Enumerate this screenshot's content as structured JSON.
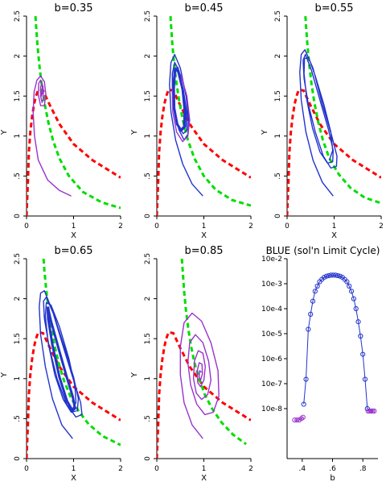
{
  "chart_data": [
    {
      "type": "line",
      "title": "b=0.35",
      "xlabel": "X",
      "ylabel": "Y",
      "xlim": [
        0,
        2
      ],
      "ylim": [
        0,
        2.5
      ],
      "xticks": [
        "0",
        "1",
        "2"
      ],
      "yticks": [
        "0",
        ".5",
        "1",
        "1.5",
        "2",
        "2.5"
      ],
      "series": [
        {
          "kind": "nullcline",
          "color": "#ff0000",
          "x": [
            0.0,
            0.03,
            0.05,
            0.08,
            0.12,
            0.16,
            0.2,
            0.25,
            0.35,
            0.5,
            0.7,
            1.0,
            1.4,
            2.0
          ],
          "y": [
            0.0,
            0.45,
            0.8,
            1.05,
            1.25,
            1.4,
            1.5,
            1.58,
            1.57,
            1.38,
            1.15,
            0.9,
            0.7,
            0.48
          ]
        },
        {
          "kind": "nullcline",
          "color": "#00dd00",
          "x": [
            0.18,
            0.2,
            0.23,
            0.27,
            0.32,
            0.38,
            0.46,
            0.56,
            0.7,
            0.9,
            1.2,
            1.6,
            2.0
          ],
          "y": [
            2.6,
            2.4,
            2.15,
            1.9,
            1.65,
            1.42,
            1.18,
            0.95,
            0.72,
            0.5,
            0.3,
            0.17,
            0.1
          ]
        },
        {
          "kind": "trajectory",
          "color": "#9933cc",
          "x": [
            0.95,
            0.7,
            0.45,
            0.25,
            0.17,
            0.14,
            0.16,
            0.22,
            0.3,
            0.38,
            0.41,
            0.38,
            0.3,
            0.25,
            0.26,
            0.3,
            0.35,
            0.36,
            0.33,
            0.3,
            0.3,
            0.33,
            0.34,
            0.32,
            0.31
          ],
          "y": [
            0.25,
            0.32,
            0.45,
            0.7,
            1.0,
            1.3,
            1.55,
            1.7,
            1.75,
            1.68,
            1.52,
            1.38,
            1.38,
            1.52,
            1.66,
            1.7,
            1.62,
            1.48,
            1.42,
            1.5,
            1.62,
            1.64,
            1.56,
            1.5,
            1.56
          ]
        }
      ]
    },
    {
      "type": "line",
      "title": "b=0.45",
      "xlabel": "X",
      "ylabel": "Y",
      "xlim": [
        0,
        2
      ],
      "ylim": [
        0,
        2.5
      ],
      "xticks": [
        "0",
        "1",
        "2"
      ],
      "yticks": [
        "0",
        ".5",
        "1",
        "1.5",
        "2",
        "2.5"
      ],
      "series": [
        {
          "kind": "nullcline",
          "color": "#ff0000",
          "x": [
            0.0,
            0.03,
            0.05,
            0.08,
            0.12,
            0.16,
            0.2,
            0.25,
            0.35,
            0.5,
            0.7,
            1.0,
            1.4,
            2.0
          ],
          "y": [
            0.0,
            0.45,
            0.8,
            1.05,
            1.25,
            1.4,
            1.5,
            1.58,
            1.57,
            1.38,
            1.15,
            0.9,
            0.7,
            0.48
          ]
        },
        {
          "kind": "nullcline",
          "color": "#00dd00",
          "x": [
            0.28,
            0.3,
            0.33,
            0.37,
            0.42,
            0.48,
            0.56,
            0.66,
            0.8,
            1.0,
            1.25,
            1.6,
            2.0
          ],
          "y": [
            2.6,
            2.4,
            2.15,
            1.9,
            1.65,
            1.42,
            1.18,
            0.95,
            0.72,
            0.5,
            0.33,
            0.2,
            0.13
          ]
        },
        {
          "kind": "trajectory",
          "color": "#2233cc",
          "x": [
            0.98,
            0.75,
            0.55,
            0.4,
            0.3,
            0.27,
            0.3,
            0.38,
            0.5,
            0.62,
            0.68,
            0.66,
            0.58,
            0.47,
            0.38,
            0.33,
            0.33,
            0.38,
            0.47,
            0.57,
            0.65,
            0.64,
            0.56,
            0.46,
            0.37,
            0.34,
            0.37,
            0.45,
            0.53,
            0.58,
            0.57,
            0.5
          ],
          "y": [
            0.25,
            0.4,
            0.65,
            0.95,
            1.3,
            1.65,
            1.92,
            2.02,
            1.85,
            1.5,
            1.2,
            1.02,
            0.95,
            1.08,
            1.3,
            1.55,
            1.78,
            1.92,
            1.82,
            1.55,
            1.25,
            1.07,
            1.03,
            1.12,
            1.35,
            1.6,
            1.82,
            1.86,
            1.62,
            1.32,
            1.12,
            1.08
          ]
        },
        {
          "kind": "trajectory",
          "color": "#9933cc",
          "x": [
            0.38,
            0.33,
            0.34,
            0.42,
            0.55,
            0.66,
            0.7,
            0.64,
            0.52,
            0.42
          ],
          "y": [
            1.78,
            1.55,
            1.3,
            1.05,
            0.93,
            1.0,
            1.2,
            1.5,
            1.75,
            1.85
          ]
        },
        {
          "kind": "trajectory",
          "color": "#2233cc",
          "width": 3,
          "x": [
            0.39,
            0.36,
            0.37,
            0.43,
            0.52,
            0.6,
            0.61,
            0.55,
            0.46,
            0.39
          ],
          "y": [
            1.85,
            1.6,
            1.35,
            1.15,
            1.07,
            1.12,
            1.32,
            1.58,
            1.8,
            1.85
          ]
        }
      ]
    },
    {
      "type": "line",
      "title": "b=0.55",
      "xlabel": "X",
      "ylabel": "Y",
      "xlim": [
        0,
        2
      ],
      "ylim": [
        0,
        2.5
      ],
      "xticks": [
        "0",
        "1",
        "2"
      ],
      "yticks": [
        "0",
        ".5",
        "1",
        "1.5",
        "2",
        "2.5"
      ],
      "series": [
        {
          "kind": "nullcline",
          "color": "#ff0000",
          "x": [
            0.0,
            0.03,
            0.05,
            0.08,
            0.12,
            0.16,
            0.2,
            0.25,
            0.35,
            0.5,
            0.7,
            1.0,
            1.4,
            2.0
          ],
          "y": [
            0.0,
            0.45,
            0.8,
            1.05,
            1.25,
            1.4,
            1.5,
            1.58,
            1.57,
            1.38,
            1.15,
            0.9,
            0.7,
            0.48
          ]
        },
        {
          "kind": "nullcline",
          "color": "#00dd00",
          "x": [
            0.38,
            0.4,
            0.43,
            0.47,
            0.52,
            0.58,
            0.66,
            0.76,
            0.9,
            1.1,
            1.35,
            1.65,
            2.0
          ],
          "y": [
            2.6,
            2.4,
            2.15,
            1.9,
            1.65,
            1.42,
            1.18,
            0.95,
            0.72,
            0.52,
            0.35,
            0.23,
            0.16
          ]
        },
        {
          "kind": "trajectory",
          "color": "#2233cc",
          "x": [
            0.98,
            0.75,
            0.55,
            0.4,
            0.3,
            0.27,
            0.3,
            0.38,
            0.55,
            0.75,
            0.95,
            1.06,
            1.05,
            0.93,
            0.77,
            0.6,
            0.45,
            0.36,
            0.34,
            0.39,
            0.52,
            0.7,
            0.88,
            0.98,
            0.97,
            0.86,
            0.7,
            0.54,
            0.42,
            0.36,
            0.37,
            0.46,
            0.6,
            0.78,
            0.93,
            0.97,
            0.9
          ],
          "y": [
            0.25,
            0.42,
            0.7,
            1.05,
            1.45,
            1.8,
            2.02,
            2.08,
            1.85,
            1.4,
            1.0,
            0.75,
            0.62,
            0.6,
            0.75,
            1.05,
            1.4,
            1.72,
            1.95,
            2.02,
            1.82,
            1.45,
            1.08,
            0.82,
            0.68,
            0.66,
            0.8,
            1.1,
            1.45,
            1.78,
            1.97,
            1.98,
            1.75,
            1.4,
            1.05,
            0.82,
            0.7
          ]
        }
      ]
    },
    {
      "type": "line",
      "title": "b=0.65",
      "xlabel": "X",
      "ylabel": "Y",
      "xlim": [
        0,
        2
      ],
      "ylim": [
        0,
        2.5
      ],
      "xticks": [
        "0",
        "1",
        "2"
      ],
      "yticks": [
        "0",
        ".5",
        "1",
        "1.5",
        "2",
        "2.5"
      ],
      "series": [
        {
          "kind": "nullcline",
          "color": "#ff0000",
          "x": [
            0.0,
            0.03,
            0.05,
            0.08,
            0.12,
            0.16,
            0.2,
            0.25,
            0.35,
            0.5,
            0.7,
            1.0,
            1.4,
            2.0
          ],
          "y": [
            0.0,
            0.45,
            0.8,
            1.05,
            1.25,
            1.4,
            1.5,
            1.58,
            1.57,
            1.38,
            1.15,
            0.9,
            0.7,
            0.48
          ]
        },
        {
          "kind": "nullcline",
          "color": "#00dd00",
          "x": [
            0.35,
            0.38,
            0.42,
            0.47,
            0.53,
            0.6,
            0.69,
            0.8,
            0.93,
            1.1,
            1.32,
            1.62,
            2.0
          ],
          "y": [
            2.6,
            2.35,
            2.1,
            1.85,
            1.62,
            1.4,
            1.18,
            0.97,
            0.78,
            0.6,
            0.43,
            0.28,
            0.17
          ]
        },
        {
          "kind": "trajectory",
          "color": "#2233cc",
          "x": [
            0.98,
            0.75,
            0.55,
            0.4,
            0.3,
            0.27,
            0.3,
            0.38,
            0.55,
            0.78,
            1.0,
            1.15,
            1.18,
            1.05,
            0.85,
            0.65,
            0.48,
            0.38,
            0.36,
            0.42,
            0.58,
            0.8,
            1.0,
            1.1,
            1.08,
            0.95,
            0.78,
            0.6,
            0.46,
            0.4,
            0.42,
            0.52,
            0.7,
            0.9,
            1.03,
            1.05,
            0.98
          ],
          "y": [
            0.25,
            0.42,
            0.75,
            1.15,
            1.55,
            1.9,
            2.07,
            2.1,
            1.85,
            1.4,
            0.98,
            0.7,
            0.55,
            0.52,
            0.68,
            1.0,
            1.4,
            1.75,
            1.97,
            2.02,
            1.8,
            1.4,
            1.02,
            0.75,
            0.6,
            0.58,
            0.74,
            1.05,
            1.45,
            1.78,
            1.95,
            1.92,
            1.65,
            1.25,
            0.9,
            0.7,
            0.62
          ]
        },
        {
          "kind": "trajectory",
          "color": "#2233cc",
          "width": 3,
          "x": [
            0.45,
            0.52,
            0.68,
            0.85,
            0.98,
            1.03,
            0.98,
            0.86,
            0.7,
            0.55,
            0.46,
            0.45
          ],
          "y": [
            1.9,
            1.72,
            1.38,
            1.03,
            0.78,
            0.63,
            0.6,
            0.72,
            1.02,
            1.42,
            1.75,
            1.9
          ]
        }
      ]
    },
    {
      "type": "line",
      "title": "b=0.85",
      "xlabel": "X",
      "ylabel": "Y",
      "xlim": [
        0,
        2
      ],
      "ylim": [
        0,
        2.5
      ],
      "xticks": [
        "0",
        "1",
        "2"
      ],
      "yticks": [
        "0",
        ".5",
        "1",
        "1.5",
        "2",
        "2.5"
      ],
      "series": [
        {
          "kind": "nullcline",
          "color": "#ff0000",
          "x": [
            0.0,
            0.03,
            0.05,
            0.08,
            0.12,
            0.16,
            0.2,
            0.25,
            0.35,
            0.5,
            0.7,
            1.0,
            1.4,
            2.0
          ],
          "y": [
            0.0,
            0.45,
            0.8,
            1.05,
            1.25,
            1.4,
            1.5,
            1.58,
            1.57,
            1.38,
            1.15,
            0.9,
            0.7,
            0.48
          ]
        },
        {
          "kind": "nullcline",
          "color": "#00dd00",
          "x": [
            0.52,
            0.55,
            0.58,
            0.62,
            0.67,
            0.73,
            0.8,
            0.9,
            1.02,
            1.18,
            1.38,
            1.62,
            1.9
          ],
          "y": [
            2.6,
            2.35,
            2.1,
            1.85,
            1.62,
            1.4,
            1.2,
            1.0,
            0.8,
            0.62,
            0.45,
            0.3,
            0.18
          ]
        },
        {
          "kind": "trajectory",
          "color": "#9933cc",
          "x": [
            0.98,
            0.75,
            0.58,
            0.5,
            0.5,
            0.58,
            0.75,
            0.95,
            1.15,
            1.3,
            1.32,
            1.2,
            1.02,
            0.85,
            0.72,
            0.66,
            0.7,
            0.82,
            0.98,
            1.1,
            1.15,
            1.08,
            0.95,
            0.84,
            0.78,
            0.8,
            0.88,
            0.98,
            1.03,
            1.0,
            0.93,
            0.87,
            0.86,
            0.9,
            0.96,
            0.97,
            0.93,
            0.9,
            0.91,
            0.95
          ],
          "y": [
            0.25,
            0.42,
            0.7,
            1.05,
            1.4,
            1.7,
            1.82,
            1.72,
            1.45,
            1.1,
            0.78,
            0.58,
            0.55,
            0.68,
            0.92,
            1.2,
            1.45,
            1.55,
            1.45,
            1.22,
            0.98,
            0.8,
            0.74,
            0.82,
            1.0,
            1.22,
            1.35,
            1.32,
            1.15,
            0.98,
            0.9,
            0.95,
            1.1,
            1.2,
            1.18,
            1.06,
            0.98,
            1.02,
            1.1,
            1.08
          ]
        }
      ]
    },
    {
      "type": "scatter",
      "title": "BLUE (sol'n Limit Cycle)",
      "xlabel": "b",
      "log_y": true,
      "xlim": [
        0.3,
        0.9
      ],
      "ylim": [
        1e-09,
        0.1
      ],
      "xticks": [
        ".4",
        ".6",
        ".8"
      ],
      "xtick_values": [
        0.4,
        0.6,
        0.8
      ],
      "yticks": [
        "10e-8",
        "10e-7",
        "10e-6",
        "10e-5",
        "10e-4",
        "10e-3",
        "10e-2"
      ],
      "ytick_values": [
        1e-07,
        1e-06,
        1e-05,
        0.0001,
        0.001,
        0.01,
        0.1
      ],
      "series": [
        {
          "color": "#2233cc",
          "marker_color": "#2233cc",
          "x": [
            0.41,
            0.425,
            0.44,
            0.455,
            0.47,
            0.485,
            0.5,
            0.515,
            0.53,
            0.545,
            0.56,
            0.575,
            0.59,
            0.605,
            0.62,
            0.635,
            0.65,
            0.665,
            0.68,
            0.695,
            0.71,
            0.725,
            0.74,
            0.755,
            0.77,
            0.785,
            0.8,
            0.815,
            0.83
          ],
          "y": [
            1.5e-07,
            1.5e-06,
            0.00015,
            0.0006,
            0.002,
            0.005,
            0.008,
            0.012,
            0.015,
            0.018,
            0.02,
            0.021,
            0.022,
            0.022,
            0.022,
            0.021,
            0.02,
            0.018,
            0.015,
            0.012,
            0.008,
            0.005,
            0.0025,
            0.001,
            0.0003,
            8e-05,
            1.5e-05,
            1.5e-06,
            1e-07
          ]
        },
        {
          "color": "#9933cc",
          "marker_color": "#9933cc",
          "x": [
            0.35,
            0.365,
            0.38,
            0.395,
            0.405
          ],
          "y": [
            3.5e-08,
            3.5e-08,
            3.5e-08,
            4e-08,
            4.5e-08
          ]
        },
        {
          "color": "#9933cc",
          "marker_color": "#9933cc",
          "x": [
            0.835,
            0.845,
            0.855,
            0.865,
            0.875
          ],
          "y": [
            8e-08,
            8e-08,
            8e-08,
            8e-08,
            8e-08
          ]
        }
      ]
    }
  ]
}
